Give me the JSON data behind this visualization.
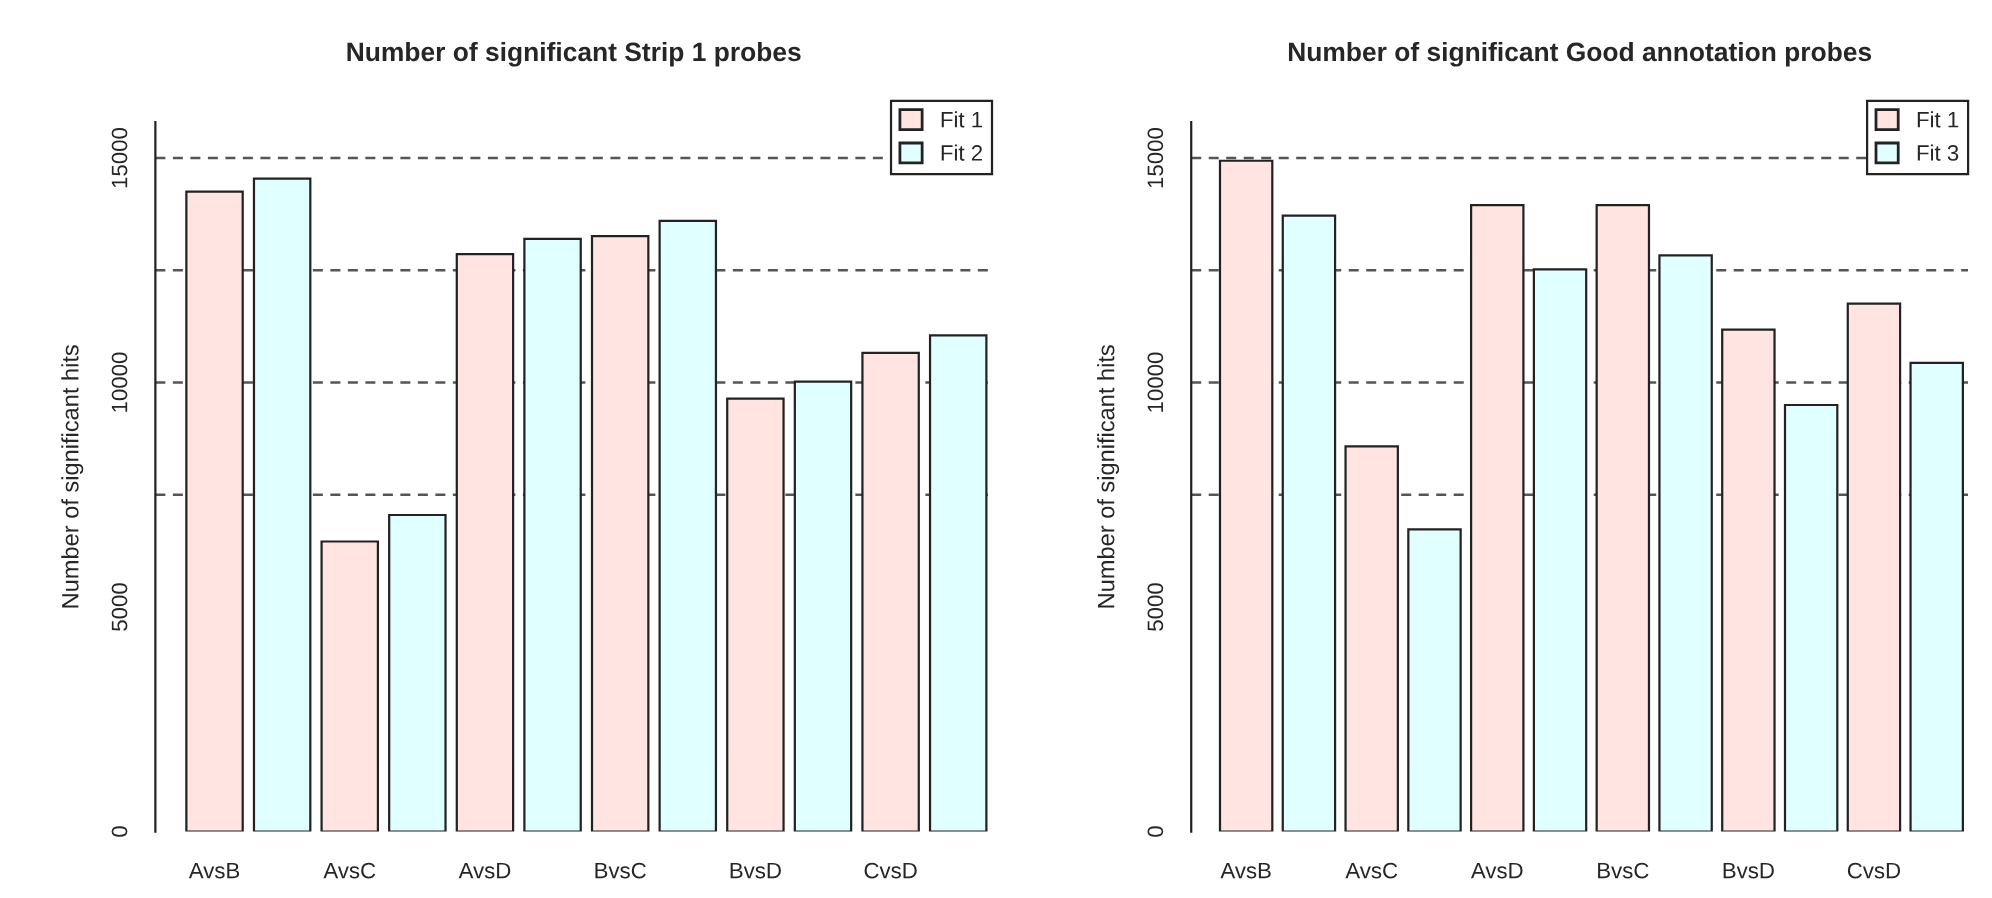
{
  "chart_data": [
    {
      "type": "bar",
      "title": "Number of significant Strip 1 probes",
      "ylabel": "Number of significant hits",
      "categories": [
        "AvsB",
        "AvsC",
        "AvsD",
        "BvsC",
        "BvsD",
        "CvsD"
      ],
      "series": [
        {
          "name": "Fit 1",
          "color": "#ffe4e1",
          "values": [
            14250,
            6460,
            12860,
            13260,
            9640,
            10660
          ]
        },
        {
          "name": "Fit 2",
          "color": "#e0ffff",
          "values": [
            14540,
            7050,
            13200,
            13600,
            10020,
            11050
          ]
        }
      ],
      "ylim": [
        0,
        15800
      ],
      "yticks": [
        0,
        5000,
        10000,
        15000
      ],
      "ref_lines": [
        {
          "axis": "y",
          "value": 7500,
          "line_style": "dashed",
          "color": "#555555"
        },
        {
          "axis": "y",
          "value": 10000,
          "line_style": "dashed",
          "color": "#555555"
        },
        {
          "axis": "y",
          "value": 12500,
          "line_style": "dashed",
          "color": "#555555"
        },
        {
          "axis": "y",
          "value": 15000,
          "line_style": "dashed",
          "color": "#555555"
        }
      ],
      "legend": "top right"
    },
    {
      "type": "bar",
      "title": "Number of significant Good annotation probes",
      "ylabel": "Number of significant hits",
      "categories": [
        "AvsB",
        "AvsC",
        "AvsD",
        "BvsC",
        "BvsD",
        "CvsD"
      ],
      "series": [
        {
          "name": "Fit 1",
          "color": "#ffe4e1",
          "values": [
            14940,
            8580,
            13950,
            13950,
            11180,
            11760
          ]
        },
        {
          "name": "Fit 3",
          "color": "#e0ffff",
          "values": [
            13720,
            6730,
            12520,
            12830,
            9500,
            10440
          ]
        }
      ],
      "ylim": [
        0,
        15800
      ],
      "yticks": [
        0,
        5000,
        10000,
        15000
      ],
      "ref_lines": [
        {
          "axis": "y",
          "value": 7500,
          "line_style": "dashed",
          "color": "#555555"
        },
        {
          "axis": "y",
          "value": 10000,
          "line_style": "dashed",
          "color": "#555555"
        },
        {
          "axis": "y",
          "value": 12500,
          "line_style": "dashed",
          "color": "#555555"
        },
        {
          "axis": "y",
          "value": 15000,
          "line_style": "dashed",
          "color": "#555555"
        }
      ],
      "legend": "top right"
    }
  ]
}
